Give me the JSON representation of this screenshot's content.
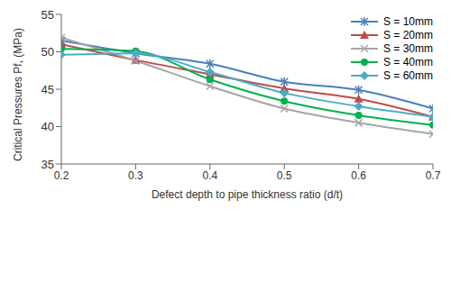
{
  "chart_data": {
    "type": "line",
    "x_label": "Defect depth to pipe thickness ratio (d/t)",
    "y_label": "Critical Pressures Pf, (MPa)",
    "x": [
      0.2,
      0.3,
      0.4,
      0.5,
      0.6,
      0.7
    ],
    "series": [
      {
        "name": "S = 10mm",
        "color": "#4a7ebb",
        "marker": "star",
        "line_style": "solid",
        "values": [
          51.5,
          49.8,
          48.4,
          46.0,
          44.9,
          42.4
        ]
      },
      {
        "name": "S = 20mm",
        "color": "#be4b48",
        "marker": "triangle",
        "line_style": "solid",
        "values": [
          51.0,
          48.9,
          47.0,
          45.1,
          43.7,
          41.3
        ]
      },
      {
        "name": "S = 30mm",
        "color": "#a5a5a5",
        "marker": "x",
        "line_style": "solid",
        "values": [
          51.9,
          48.8,
          45.4,
          42.4,
          40.5,
          39.0
        ]
      },
      {
        "name": "S = 40mm",
        "color": "#00b050",
        "marker": "circle",
        "line_style": "solid",
        "values": [
          50.4,
          50.1,
          46.3,
          43.4,
          41.5,
          40.2
        ]
      },
      {
        "name": "S = 60mm",
        "color": "#4bacc6",
        "marker": "diamond",
        "line_style": "solid",
        "values": [
          49.6,
          49.8,
          47.3,
          44.5,
          42.7,
          41.3
        ]
      }
    ],
    "xlim": [
      0.2,
      0.7
    ],
    "xticks": [
      0.2,
      0.3,
      0.4,
      0.5,
      0.6,
      0.7
    ],
    "ylim": [
      35,
      55
    ],
    "yticks": [
      35,
      40,
      45,
      50,
      55
    ],
    "grid": false,
    "legend": "upper right"
  }
}
